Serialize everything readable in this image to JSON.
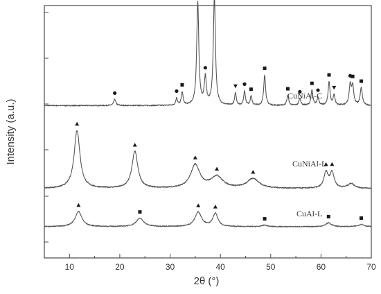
{
  "chart_data": {
    "type": "line",
    "title": "",
    "xlabel": "2θ (°)",
    "ylabel": "Intensity (a.u.)",
    "xlim": [
      5,
      70
    ],
    "xticks": [
      10,
      20,
      30,
      40,
      50,
      60,
      70
    ],
    "y_tick_labels": "none",
    "grid": false,
    "marker_legend": {
      "square": "",
      "circle": "",
      "triangle_down": "",
      "triangle_up": ""
    },
    "series": [
      {
        "name": "CuNiAl-C",
        "baseline": 0.12,
        "peaks": [
          {
            "x": 19.0,
            "h": 0.06,
            "w": 0.25,
            "marker": "circle"
          },
          {
            "x": 31.3,
            "h": 0.07,
            "w": 0.2,
            "marker": "circle"
          },
          {
            "x": 32.4,
            "h": 0.13,
            "w": 0.2,
            "marker": "square"
          },
          {
            "x": 35.5,
            "h": 1.0,
            "w": 0.25,
            "marker": "square"
          },
          {
            "x": 37.0,
            "h": 0.26,
            "w": 0.25,
            "marker": "circle"
          },
          {
            "x": 38.8,
            "h": 1.06,
            "w": 0.25,
            "marker": "square"
          },
          {
            "x": 43.0,
            "h": 0.12,
            "w": 0.2,
            "marker": "triangle_down"
          },
          {
            "x": 44.8,
            "h": 0.14,
            "w": 0.2,
            "marker": "circle"
          },
          {
            "x": 46.1,
            "h": 0.09,
            "w": 0.2,
            "marker": "square"
          },
          {
            "x": 48.8,
            "h": 0.3,
            "w": 0.22,
            "marker": "square"
          },
          {
            "x": 53.4,
            "h": 0.1,
            "w": 0.22,
            "marker": "square"
          },
          {
            "x": 55.8,
            "h": 0.07,
            "w": 0.22,
            "marker": "circle"
          },
          {
            "x": 58.2,
            "h": 0.15,
            "w": 0.22,
            "marker": "square"
          },
          {
            "x": 59.4,
            "h": 0.08,
            "w": 0.22,
            "marker": "circle"
          },
          {
            "x": 61.6,
            "h": 0.23,
            "w": 0.22,
            "marker": "square"
          },
          {
            "x": 62.6,
            "h": 0.1,
            "w": 0.22,
            "marker": "triangle_down"
          },
          {
            "x": 65.8,
            "h": 0.19,
            "w": 0.25,
            "marker": "circle"
          },
          {
            "x": 66.3,
            "h": 0.18,
            "w": 0.25,
            "marker": "square"
          },
          {
            "x": 68.0,
            "h": 0.17,
            "w": 0.25,
            "marker": "square"
          }
        ]
      },
      {
        "name": "CuNiAl-L",
        "baseline": 0.1,
        "peaks": [
          {
            "x": 11.5,
            "h": 0.6,
            "w": 0.7,
            "marker": "triangle_up"
          },
          {
            "x": 23.0,
            "h": 0.38,
            "w": 0.7,
            "marker": "triangle_up"
          },
          {
            "x": 35.0,
            "h": 0.24,
            "w": 1.1,
            "marker": "triangle_up"
          },
          {
            "x": 39.3,
            "h": 0.12,
            "w": 1.4,
            "marker": "triangle_up"
          },
          {
            "x": 46.5,
            "h": 0.1,
            "w": 1.4,
            "marker": "triangle_up"
          },
          {
            "x": 61.0,
            "h": 0.16,
            "w": 0.5,
            "marker": "triangle_up"
          },
          {
            "x": 62.2,
            "h": 0.16,
            "w": 0.5,
            "marker": "triangle_up"
          },
          {
            "x": 66.0,
            "h": 0.05,
            "w": 0.8,
            "marker": null
          }
        ]
      },
      {
        "name": "CuAl-L",
        "baseline": 0.1,
        "peaks": [
          {
            "x": 11.8,
            "h": 0.2,
            "w": 0.8,
            "marker": "triangle_up"
          },
          {
            "x": 24.0,
            "h": 0.11,
            "w": 0.9,
            "marker": "square"
          },
          {
            "x": 35.6,
            "h": 0.19,
            "w": 0.8,
            "marker": "triangle_up"
          },
          {
            "x": 39.0,
            "h": 0.17,
            "w": 0.6,
            "marker": "triangle_up"
          },
          {
            "x": 48.8,
            "h": 0.02,
            "w": 0.6,
            "marker": "square"
          },
          {
            "x": 61.5,
            "h": 0.05,
            "w": 0.7,
            "marker": "square"
          },
          {
            "x": 68.0,
            "h": 0.03,
            "w": 0.7,
            "marker": "square"
          }
        ]
      }
    ]
  }
}
